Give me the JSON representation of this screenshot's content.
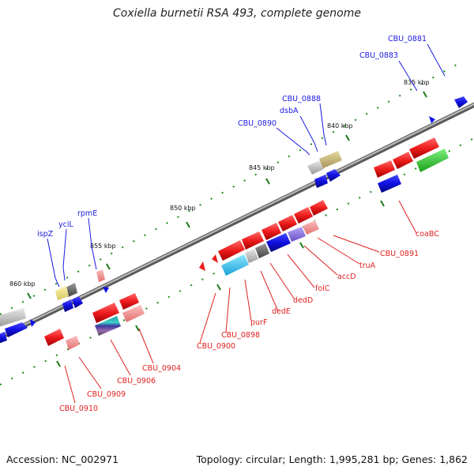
{
  "header": {
    "title": "Coxiella burnetii RSA 493, complete genome"
  },
  "footer": {
    "accession": "Accession: NC_002971",
    "summary": "Topology: circular; Length: 1,995,281 bp; Genes: 1,862"
  },
  "ticks": [
    "835 kbp",
    "840 kbp",
    "845 kbp",
    "850 kbp",
    "855 kbp",
    "860 kbp"
  ],
  "forward_gene_labels": [
    "CBU_0881",
    "CBU_0883",
    "CBU_0888",
    "dsbA",
    "CBU_0890",
    "rpmE",
    "yciL",
    "ispZ"
  ],
  "reverse_gene_labels": [
    "coaBC",
    "CBU_0891",
    "truA",
    "accD",
    "folC",
    "dedD",
    "dedE",
    "purF",
    "CBU_0898",
    "CBU_0900",
    "CBU_0904",
    "CBU_0906",
    "CBU_0909",
    "CBU_0910"
  ],
  "colors": {
    "backbone": "#7a7a7a",
    "forward_cds": "#1010e0",
    "reverse_cds": "#ee1c1c",
    "label_forward": "#1a1ae0",
    "label_reverse": "#e02020",
    "tick_minor": "#1a8a1a"
  }
}
